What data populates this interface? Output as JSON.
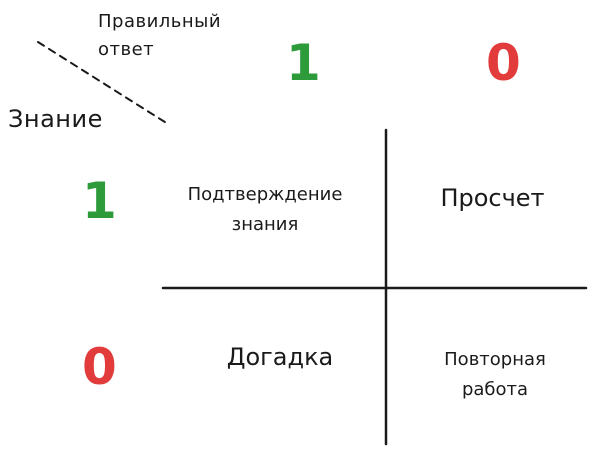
{
  "header": {
    "column_axis_label": "Правильный ответ",
    "row_axis_label": "Знание"
  },
  "columns": [
    {
      "value": "1",
      "color": "#2e9b3a"
    },
    {
      "value": "0",
      "color": "#e23b3b"
    }
  ],
  "rows": [
    {
      "value": "1",
      "color": "#2e9b3a"
    },
    {
      "value": "0",
      "color": "#e23b3b"
    }
  ],
  "cells": {
    "know_correct": "Подтверждение знания",
    "know_wrong": "Просчет",
    "dont_know_correct": "Догадка",
    "dont_know_wrong": "Повторная работа"
  }
}
